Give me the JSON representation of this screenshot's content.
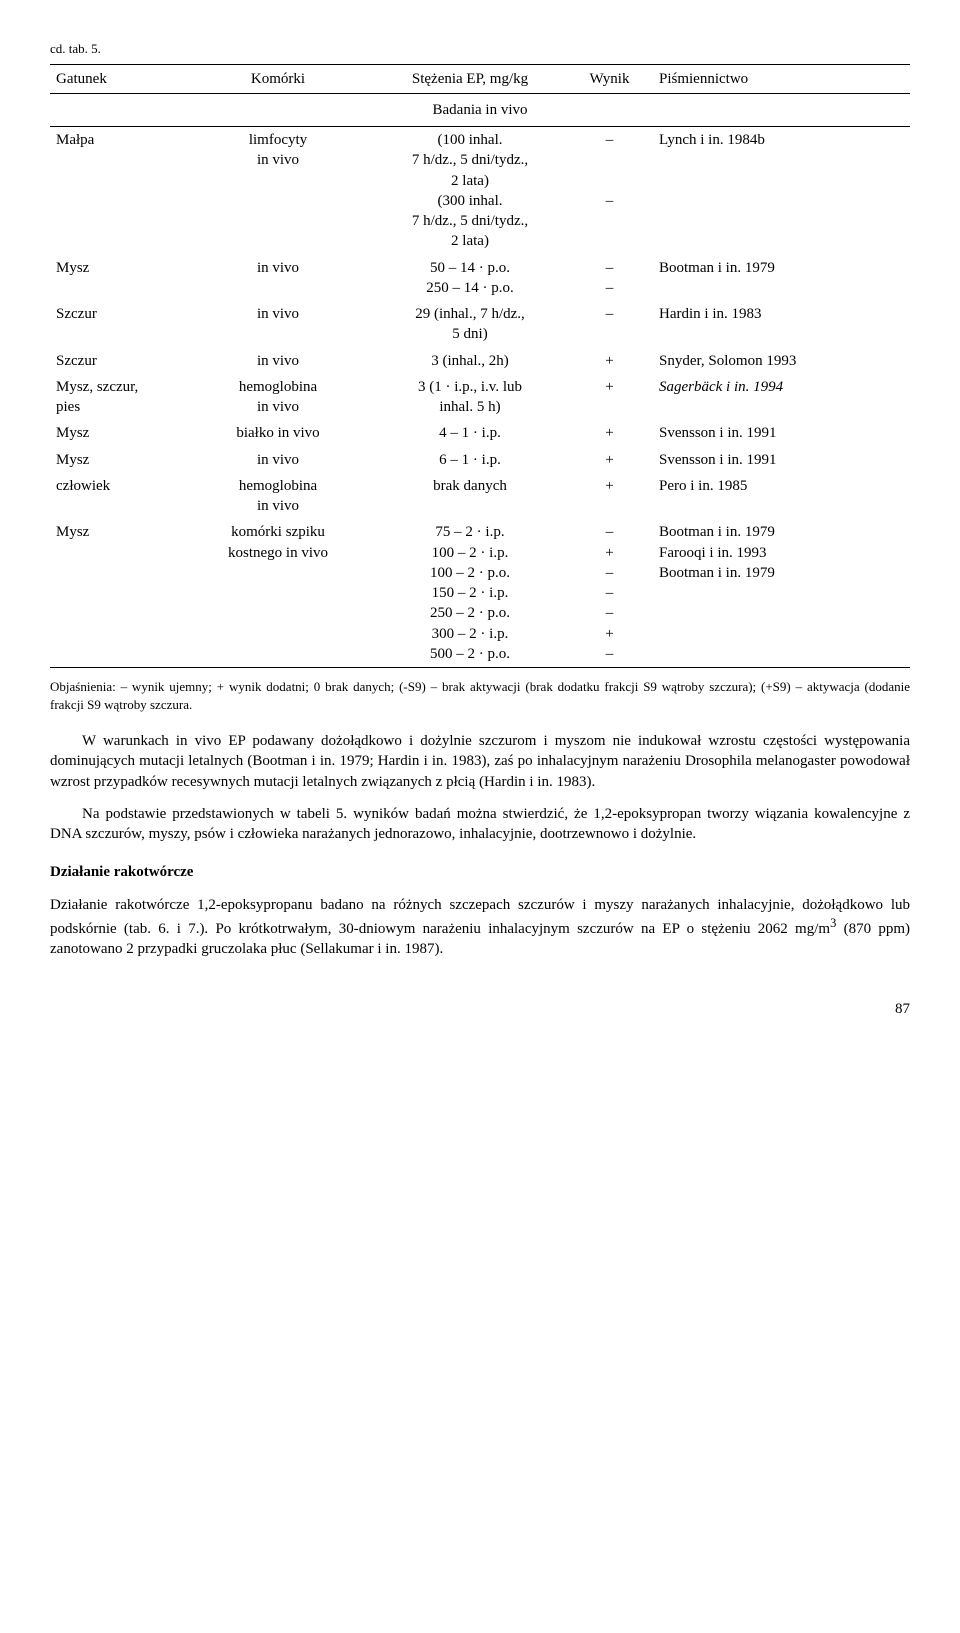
{
  "tableLabel": "cd. tab. 5.",
  "headers": {
    "c1": "Gatunek",
    "c2": "Komórki",
    "c3": "Stężenia EP, mg/kg",
    "c4": "Wynik",
    "c5": "Piśmiennictwo"
  },
  "sectionTitle": "Badania in vivo",
  "rows": [
    {
      "c1": "Małpa",
      "c2": "limfocyty\nin vivo",
      "c3": "(100 inhal.\n7 h/dz., 5 dni/tydz.,\n2 lata)\n(300 inhal.\n7 h/dz., 5 dni/tydz.,\n2 lata)",
      "c4": "–\n\n\n–",
      "c5": "Lynch i in. 1984b"
    },
    {
      "c1": "Mysz",
      "c2": "in vivo",
      "c3": "50 – 14 · p.o.\n250 – 14 · p.o.",
      "c4": "–\n–",
      "c5": "Bootman i in. 1979"
    },
    {
      "c1": "Szczur",
      "c2": "in vivo",
      "c3": "29 (inhal., 7 h/dz.,\n5 dni)",
      "c4": "–",
      "c5": "Hardin i in. 1983"
    },
    {
      "c1": "Szczur",
      "c2": "in vivo",
      "c3": "3 (inhal., 2h)",
      "c4": "+",
      "c5": "Snyder, Solomon 1993"
    },
    {
      "c1": "Mysz, szczur,\npies",
      "c2": "hemoglobina\nin vivo",
      "c3": "3 (1 · i.p., i.v. lub\ninhal. 5 h)",
      "c4": "+",
      "c5": "Sagerbäck i in. 1994",
      "c5_italic": true
    },
    {
      "c1": "Mysz",
      "c2": "białko in vivo",
      "c3": "4 – 1 · i.p.",
      "c4": "+",
      "c5": "Svensson i in. 1991"
    },
    {
      "c1": "Mysz",
      "c2": "in vivo",
      "c3": "6 – 1 · i.p.",
      "c4": "+",
      "c5": "Svensson i in. 1991"
    },
    {
      "c1": "człowiek",
      "c2": "hemoglobina\nin vivo",
      "c3": "brak danych",
      "c4": "+",
      "c5": "Pero i in. 1985"
    },
    {
      "c1": "Mysz",
      "c2": "komórki szpiku\nkostnego in vivo",
      "c3": "75 – 2 · i.p.\n100 – 2 · i.p.\n100 – 2 · p.o.\n150 – 2 · i.p.\n250 – 2 · p.o.\n300 – 2 · i.p.\n500 – 2 · p.o.",
      "c4": "–\n+\n–\n–\n–\n+\n–",
      "c5": "Bootman i in. 1979\nFarooqi i in. 1993\nBootman i in. 1979"
    }
  ],
  "caption": "Objaśnienia: – wynik ujemny; + wynik dodatni; 0 brak danych; (-S9) – brak aktywacji (brak dodatku frakcji S9 wątroby szczura); (+S9) – aktywacja (dodanie frakcji S9 wątroby szczura.",
  "para1": "W warunkach in vivo EP podawany dożołądkowo i dożylnie szczurom i my­szom nie indukował wzrostu częstości występowania dominujących mutacji letalnych (Bootman i in. 1979; Hardin i in. 1983), zaś po inhalacyjnym narażeniu Drosophila melanogaster powodował wzrost przypadków recesywnych mutacji letalnych związa­nych z płcią (Hardin i in. 1983).",
  "para2": "Na podstawie przedstawionych w tabeli 5. wyników badań można stwierdzić, że 1,2-epoksypropan tworzy wiązania kowalencyjne z DNA szczurów, myszy, psów i człowieka narażanych jednorazowo, inhalacyjnie, dootrzewnowo i dożylnie.",
  "heading": "Działanie rakotwórcze",
  "para3_a": "Działanie rakotwórcze 1,2-epoksypropanu badano na różnych szczepach szczurów i myszy narażanych inhalacyjnie, dożołądkowo lub podskórnie (tab. 6. i 7.). Po krótko­trwałym, 30-dniowym narażeniu inhalacyjnym szczurów na EP o stężeniu 2062 mg/m",
  "para3_sup": "3",
  "para3_b": " (870 ppm) zanotowano 2 przypadki gruczolaka płuc (Sellakumar i in. 1987).",
  "pageNumber": "87"
}
